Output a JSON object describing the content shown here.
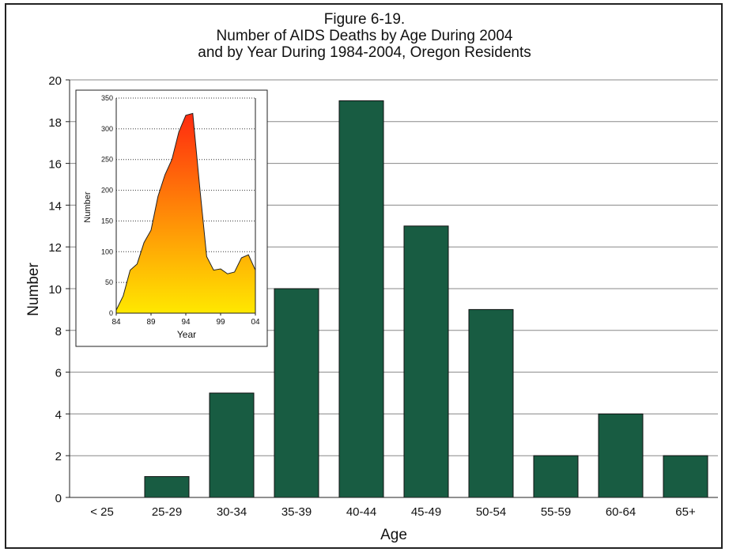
{
  "title_lines": [
    "Figure 6-19.",
    "Number of AIDS Deaths by Age During 2004",
    "and by Year During 1984-2004, Oregon Residents"
  ],
  "colors": {
    "bar": "#185c42",
    "grid": "#888888",
    "inset_gradient_top": "#ff2a0f",
    "inset_gradient_bottom": "#ffe800"
  },
  "chart_data": [
    {
      "type": "bar",
      "categories": [
        "< 25",
        "25-29",
        "30-34",
        "35-39",
        "40-44",
        "45-49",
        "50-54",
        "55-59",
        "60-64",
        "65+"
      ],
      "values": [
        0,
        1,
        5,
        10,
        19,
        13,
        9,
        2,
        4,
        2
      ],
      "xlabel": "Age",
      "ylabel": "Number",
      "ylim": [
        0,
        20
      ],
      "yticks": [
        0,
        2,
        4,
        6,
        8,
        10,
        12,
        14,
        16,
        18,
        20
      ],
      "grid": "horizontal"
    },
    {
      "type": "area",
      "x": [
        84,
        85,
        86,
        87,
        88,
        89,
        90,
        91,
        92,
        93,
        94,
        95,
        96,
        97,
        98,
        99,
        100,
        101,
        102,
        103,
        104
      ],
      "values": [
        5,
        28,
        70,
        80,
        115,
        135,
        190,
        225,
        250,
        295,
        322,
        325,
        205,
        92,
        70,
        72,
        64,
        67,
        90,
        95,
        70
      ],
      "xticks": [
        "84",
        "89",
        "94",
        "99",
        "04"
      ],
      "xlabel": "Year",
      "ylabel": "Number",
      "ylim": [
        0,
        350
      ],
      "yticks": [
        0,
        50,
        100,
        150,
        200,
        250,
        300,
        350
      ],
      "grid": "horizontal-dotted"
    }
  ]
}
